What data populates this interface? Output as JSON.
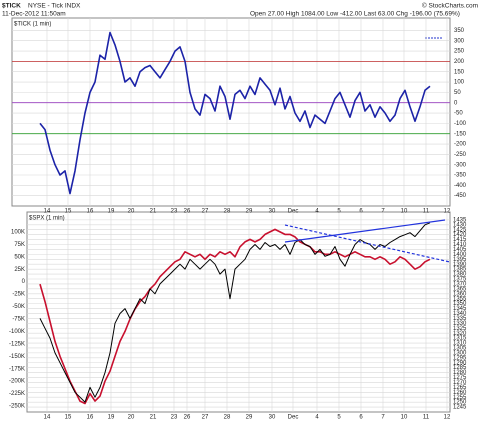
{
  "header": {
    "symbol": "$TICK",
    "name": "NYSE - Tick  INDX",
    "datetime": "11-Dec-2012 11:50am",
    "quote": "Open 27.00  High 1084.00  Low -412.00  Last 63.00  Chg -196.00 (75.69%)",
    "watermark": "© StockCharts.com"
  },
  "chart_data": [
    {
      "type": "line",
      "title": "$TICK (1 min)",
      "grid": true,
      "xlim": [
        -5.6,
        82
      ],
      "xticks": [
        {
          "value": 1.4,
          "label": "14"
        },
        {
          "value": 5.6,
          "label": "15"
        },
        {
          "value": 10,
          "label": "16"
        },
        {
          "value": 14.2,
          "label": "19"
        },
        {
          "value": 18.2,
          "label": "20"
        },
        {
          "value": 22.6,
          "label": "21"
        },
        {
          "value": 26.8,
          "label": "23"
        },
        {
          "value": 29.4,
          "label": "26"
        },
        {
          "value": 33,
          "label": "27"
        },
        {
          "value": 37.4,
          "label": "28"
        },
        {
          "value": 41.8,
          "label": "29"
        },
        {
          "value": 46.4,
          "label": "30"
        },
        {
          "value": 50.6,
          "label": "Dec"
        },
        {
          "value": 55.4,
          "label": "4"
        },
        {
          "value": 59.8,
          "label": "5"
        },
        {
          "value": 64.2,
          "label": "6"
        },
        {
          "value": 68.6,
          "label": "7"
        },
        {
          "value": 72.8,
          "label": "10"
        },
        {
          "value": 77.2,
          "label": "11"
        },
        {
          "value": 81.4,
          "label": "12"
        }
      ],
      "ylim": [
        -500,
        410
      ],
      "yticks": [
        350,
        300,
        250,
        200,
        150,
        100,
        50,
        0,
        -50,
        -100,
        -150,
        -200,
        -250,
        -300,
        -350,
        -400,
        -450
      ],
      "hlines": [
        {
          "value": 200,
          "color": "#c03030"
        },
        {
          "value": 0,
          "color": "#9a40c0"
        },
        {
          "value": -150,
          "color": "#30a030"
        }
      ],
      "series": [
        {
          "color": "#1c23a8",
          "values": [
            -100,
            -130,
            -230,
            -300,
            -350,
            -330,
            -440,
            -330,
            -180,
            -50,
            50,
            100,
            230,
            210,
            340,
            280,
            200,
            100,
            120,
            80,
            150,
            170,
            180,
            150,
            120,
            160,
            200,
            250,
            270,
            200,
            50,
            -30,
            -60,
            40,
            20,
            -40,
            80,
            30,
            -80,
            40,
            60,
            20,
            80,
            40,
            120,
            90,
            60,
            -10,
            70,
            -30,
            30,
            -50,
            -90,
            -40,
            -120,
            -60,
            -80,
            -100,
            -40,
            20,
            50,
            -10,
            -70,
            10,
            50,
            -40,
            -10,
            -70,
            -20,
            -50,
            -90,
            -60,
            20,
            60,
            -20,
            -90,
            -20,
            60,
            80
          ]
        }
      ]
    },
    {
      "type": "line",
      "title": "$SPX (1 min)",
      "grid": true,
      "xlim": [
        -2.6,
        82
      ],
      "xticks": [
        {
          "value": 1.4,
          "label": "14"
        },
        {
          "value": 5.6,
          "label": "15"
        },
        {
          "value": 10,
          "label": "16"
        },
        {
          "value": 14.2,
          "label": "19"
        },
        {
          "value": 18.2,
          "label": "20"
        },
        {
          "value": 22.6,
          "label": "21"
        },
        {
          "value": 26.8,
          "label": "23"
        },
        {
          "value": 29.4,
          "label": "26"
        },
        {
          "value": 33,
          "label": "27"
        },
        {
          "value": 37.4,
          "label": "28"
        },
        {
          "value": 41.8,
          "label": "29"
        },
        {
          "value": 46.4,
          "label": "30"
        },
        {
          "value": 50.6,
          "label": "Dec"
        },
        {
          "value": 55.4,
          "label": "4"
        },
        {
          "value": 59.8,
          "label": "5"
        },
        {
          "value": 64.2,
          "label": "6"
        },
        {
          "value": 68.6,
          "label": "7"
        },
        {
          "value": 72.8,
          "label": "10"
        },
        {
          "value": 77.2,
          "label": "11"
        },
        {
          "value": 81.4,
          "label": "12"
        }
      ],
      "ylim": [
        -262000,
        140000
      ],
      "yticks": [
        {
          "value": 100000,
          "label": "100K"
        },
        {
          "value": 75000,
          "label": "75K"
        },
        {
          "value": 50000,
          "label": "50K"
        },
        {
          "value": 25000,
          "label": "25K"
        },
        0,
        {
          "value": -25000,
          "label": "-25K"
        },
        {
          "value": -50000,
          "label": "-50K"
        },
        {
          "value": -75000,
          "label": "-75K"
        },
        {
          "value": -100000,
          "label": "-100K"
        },
        {
          "value": -125000,
          "label": "-125K"
        },
        {
          "value": -150000,
          "label": "-150K"
        },
        {
          "value": -175000,
          "label": "-175K"
        },
        {
          "value": -200000,
          "label": "-200K"
        },
        {
          "value": -225000,
          "label": "-225K"
        },
        {
          "value": -250000,
          "label": "-250K"
        }
      ],
      "y2lim": [
        1240,
        1443
      ],
      "y2ticks": [
        1435,
        1430,
        1425,
        1420,
        1415,
        1410,
        1405,
        1400,
        1395,
        1390,
        1385,
        1380,
        1375,
        1370,
        1365,
        1360,
        1355,
        1350,
        1345,
        1340,
        1335,
        1330,
        1325,
        1320,
        1315,
        1310,
        1305,
        1300,
        1295,
        1290,
        1285,
        1280,
        1275,
        1270,
        1265,
        1260,
        1255,
        1250,
        1245
      ],
      "series": [
        {
          "color": "#c8102e",
          "values": [
            -5000,
            -40000,
            -80000,
            -120000,
            -150000,
            -175000,
            -200000,
            -220000,
            -240000,
            -245000,
            -225000,
            -240000,
            -230000,
            -200000,
            -180000,
            -150000,
            -120000,
            -100000,
            -75000,
            -55000,
            -40000,
            -30000,
            -15000,
            -5000,
            10000,
            20000,
            30000,
            40000,
            45000,
            60000,
            55000,
            50000,
            55000,
            45000,
            55000,
            50000,
            60000,
            55000,
            60000,
            50000,
            70000,
            80000,
            85000,
            80000,
            85000,
            95000,
            100000,
            105000,
            100000,
            95000,
            95000,
            90000,
            80000,
            75000,
            70000,
            60000,
            60000,
            55000,
            55000,
            60000,
            55000,
            50000,
            55000,
            60000,
            55000,
            50000,
            50000,
            45000,
            50000,
            45000,
            35000,
            40000,
            50000,
            45000,
            35000,
            25000,
            30000,
            40000,
            45000
          ]
        },
        {
          "color": "#000000",
          "axis": "y2",
          "values": [
            1335,
            1325,
            1315,
            1300,
            1290,
            1280,
            1270,
            1260,
            1255,
            1250,
            1265,
            1255,
            1265,
            1280,
            1300,
            1330,
            1340,
            1345,
            1335,
            1345,
            1355,
            1350,
            1365,
            1360,
            1370,
            1375,
            1380,
            1385,
            1390,
            1385,
            1395,
            1390,
            1385,
            1390,
            1395,
            1390,
            1380,
            1385,
            1355,
            1385,
            1390,
            1395,
            1405,
            1410,
            1405,
            1412,
            1408,
            1410,
            1405,
            1410,
            1400,
            1412,
            1415,
            1410,
            1408,
            1400,
            1405,
            1398,
            1400,
            1408,
            1395,
            1388,
            1400,
            1410,
            1415,
            1412,
            1410,
            1405,
            1410,
            1408,
            1412,
            1415,
            1418,
            1420,
            1422,
            1418,
            1424,
            1430,
            1432
          ]
        }
      ]
    }
  ]
}
